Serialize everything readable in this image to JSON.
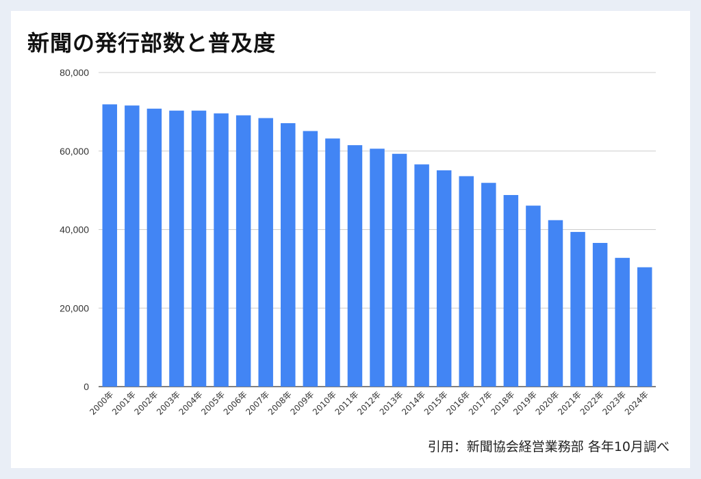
{
  "title": "新聞の発行部数と普及度",
  "source": "引用：新聞協会経営業務部 各年10月調べ",
  "colors": {
    "bar": "#4285f4",
    "grid": "#cccccc",
    "background": "#e9eef6",
    "card": "#ffffff"
  },
  "chart_data": {
    "type": "bar",
    "title": "新聞の発行部数と普及度",
    "xlabel": "",
    "ylabel": "",
    "ylim": [
      0,
      80000
    ],
    "yticks": [
      "0",
      "20,000",
      "40,000",
      "60,000",
      "80,000"
    ],
    "grid": true,
    "categories": [
      "2000年",
      "2001年",
      "2002年",
      "2003年",
      "2004年",
      "2005年",
      "2006年",
      "2007年",
      "2008年",
      "2009年",
      "2010年",
      "2011年",
      "2012年",
      "2013年",
      "2014年",
      "2015年",
      "2016年",
      "2017年",
      "2018年",
      "2019年",
      "2020年",
      "2021年",
      "2022年",
      "2023年",
      "2024年"
    ],
    "values": [
      71900,
      71600,
      70800,
      70300,
      70300,
      69600,
      69100,
      68400,
      67100,
      65100,
      63200,
      61500,
      60600,
      59300,
      56600,
      55100,
      53600,
      51900,
      48800,
      46100,
      42400,
      39400,
      36600,
      32800,
      30400
    ]
  }
}
